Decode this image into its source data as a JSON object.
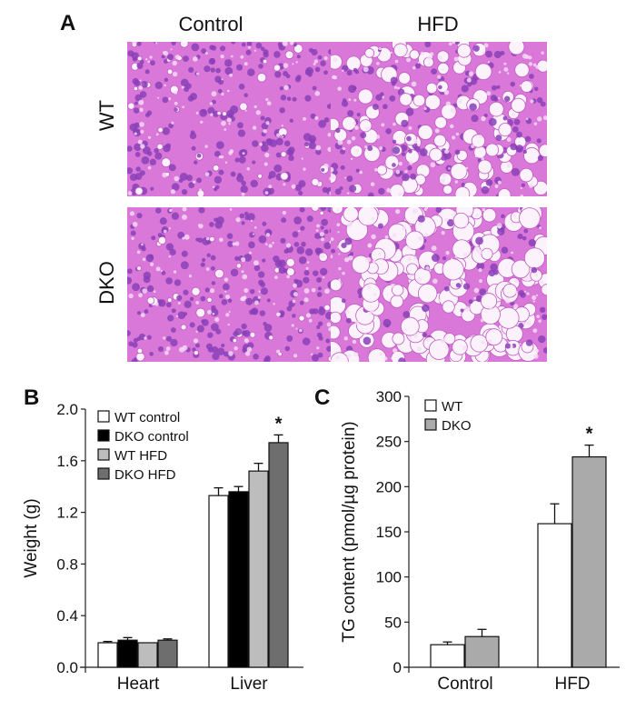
{
  "panel_a": {
    "letter": "A",
    "columns": [
      "Control",
      "HFD"
    ],
    "rows": [
      "WT",
      "DKO"
    ],
    "images": [
      {
        "row": "WT",
        "col": "Control",
        "desc": "H&E liver section, small cells, few vacuoles"
      },
      {
        "row": "WT",
        "col": "HFD",
        "desc": "H&E liver section, moderate lipid vacuoles"
      },
      {
        "row": "DKO",
        "col": "Control",
        "desc": "H&E liver section, small cells, few vacuoles"
      },
      {
        "row": "DKO",
        "col": "HFD",
        "desc": "H&E liver section, large lipid vacuoles"
      }
    ]
  },
  "panel_b": {
    "letter": "B"
  },
  "panel_c": {
    "letter": "C"
  },
  "colors": {
    "stain_bg": "#d978d8",
    "stain_nuclei": "#8a3fb8",
    "vacuole": "#fbf2fb",
    "wt_control": "#ffffff",
    "dko_control": "#000000",
    "wt_hfd": "#bdbdbd",
    "dko_hfd": "#6e6e6e",
    "c_wt": "#ffffff",
    "c_dko": "#aaaaaa"
  },
  "chart_data": [
    {
      "type": "bar",
      "title": "",
      "xlabel": "",
      "ylabel": "Weight (g)",
      "ylim": [
        0,
        2.0
      ],
      "yticks": [
        "0.0",
        "0.4",
        "0.8",
        "1.2",
        "1.6",
        "2.0"
      ],
      "categories": [
        "Heart",
        "Liver"
      ],
      "legend_position": "upper left",
      "series": [
        {
          "name": "WT control",
          "values": [
            0.19,
            1.33
          ],
          "errors": [
            0.01,
            0.06
          ]
        },
        {
          "name": "DKO control",
          "values": [
            0.21,
            1.36
          ],
          "errors": [
            0.02,
            0.04
          ]
        },
        {
          "name": "WT HFD",
          "values": [
            0.19,
            1.52
          ],
          "errors": [
            0.0,
            0.06
          ]
        },
        {
          "name": "DKO HFD",
          "values": [
            0.21,
            1.74
          ],
          "errors": [
            0.01,
            0.06
          ]
        }
      ],
      "annotations": [
        {
          "text": "*",
          "category": "Liver",
          "series": "DKO HFD"
        }
      ]
    },
    {
      "type": "bar",
      "title": "",
      "xlabel": "",
      "ylabel": "TG content (pmol/µg protein)",
      "ylim": [
        0,
        300
      ],
      "yticks": [
        "0",
        "50",
        "100",
        "150",
        "200",
        "250",
        "300"
      ],
      "categories": [
        "Control",
        "HFD"
      ],
      "legend_position": "upper left",
      "series": [
        {
          "name": "WT",
          "values": [
            25,
            159
          ],
          "errors": [
            3,
            22
          ]
        },
        {
          "name": "DKO",
          "values": [
            34,
            233
          ],
          "errors": [
            8,
            13
          ]
        }
      ],
      "annotations": [
        {
          "text": "*",
          "category": "HFD",
          "series": "DKO"
        }
      ]
    }
  ]
}
